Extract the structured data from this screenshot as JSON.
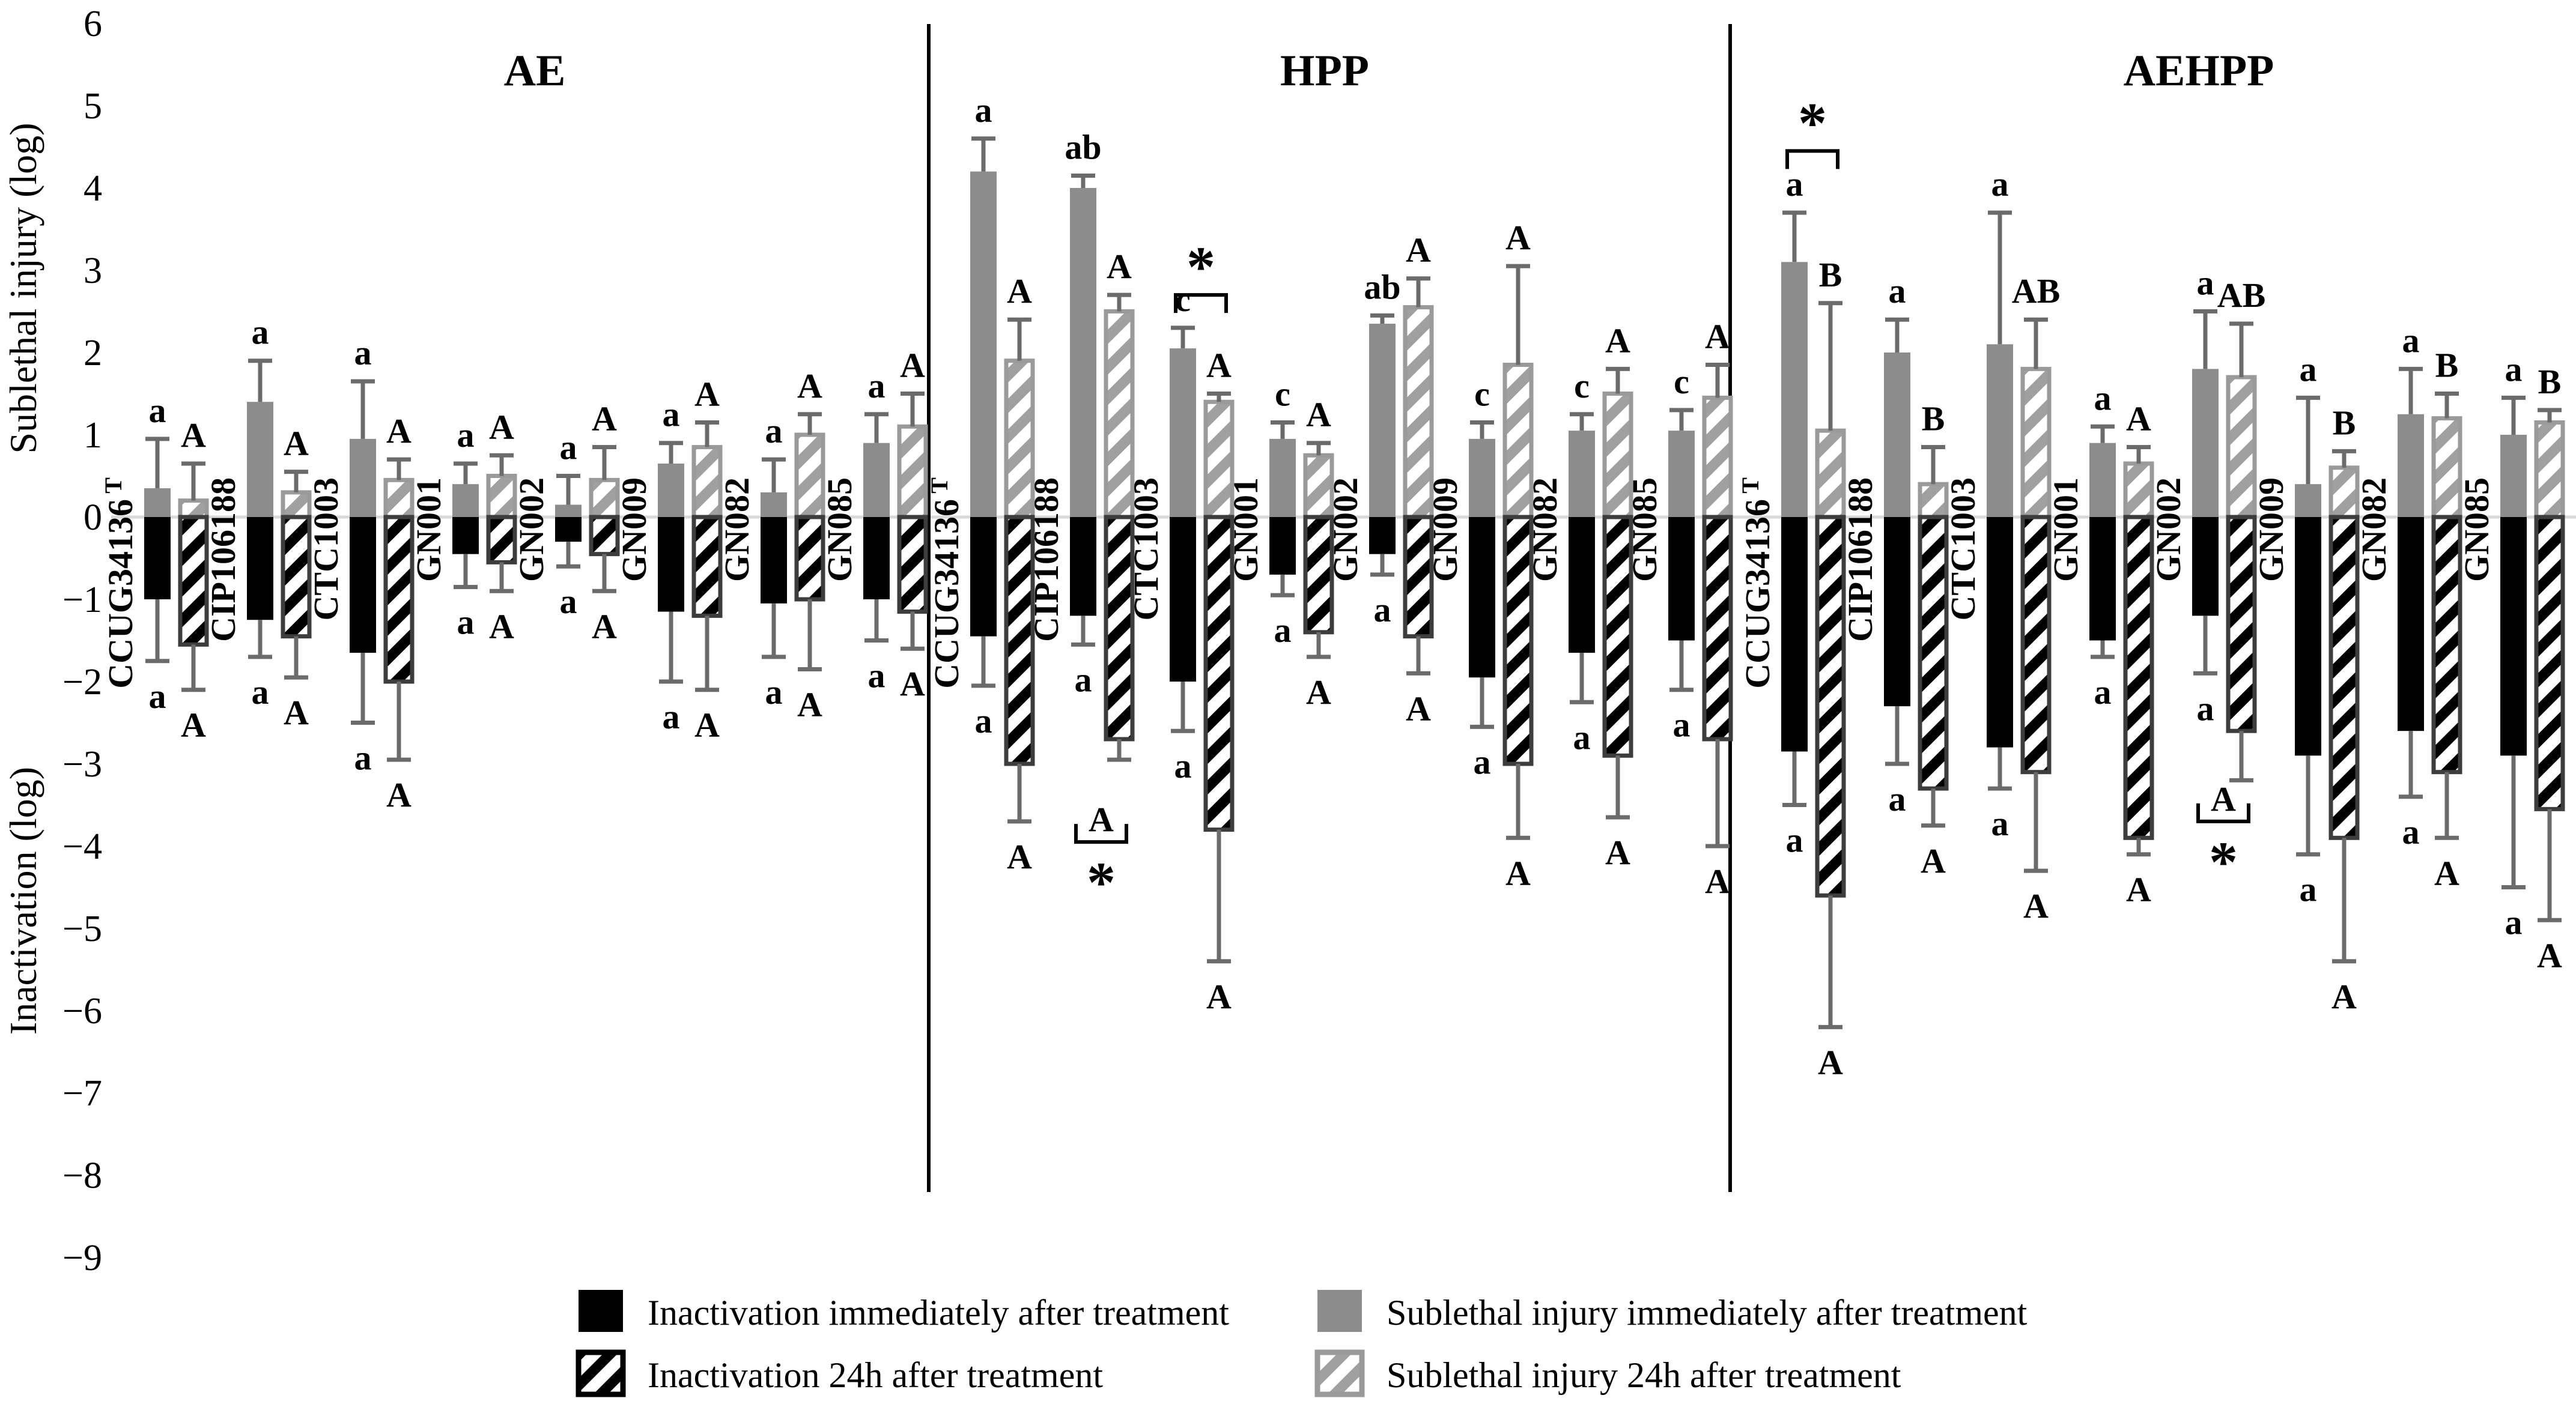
{
  "figure": {
    "background": "#ffffff",
    "accent_gray": "#8c8c8c",
    "hatch_black_border": "#3d3d3d",
    "hatch_gray_stripe": "#a0a0a0",
    "error_bar_color": "#6b6b6b",
    "zero_line_color": "#d9d9d9"
  },
  "chart_data": {
    "type": "bar",
    "title": "",
    "ylabel_top": "Sublethal injury (log)",
    "ylabel_bottom": "Inactivation (log)",
    "ylim": [
      -9,
      6
    ],
    "yticks": [
      6,
      5,
      4,
      3,
      2,
      1,
      0,
      -1,
      -2,
      -3,
      -4,
      -5,
      -6,
      -7,
      -8,
      -9
    ],
    "grid": "off",
    "legend_position": "bottom",
    "series_legend": [
      {
        "key": "inact0",
        "style": "black-solid",
        "label": "Inactivation immediately after treatment"
      },
      {
        "key": "subl0",
        "style": "gray-solid",
        "label": "Sublethal injury immediately after treatment"
      },
      {
        "key": "inact24",
        "style": "black-hatched",
        "label": "Inactivation 24h after treatment"
      },
      {
        "key": "subl24",
        "style": "gray-hatched",
        "label": "Sublethal injury 24h after treatment"
      }
    ],
    "panels": [
      {
        "name": "AE",
        "strains": [
          {
            "name": "CCUG34136",
            "sup": "T",
            "subl0": {
              "v": 0.35,
              "e": 0.95,
              "letter": "a"
            },
            "subl24": {
              "v": 0.2,
              "e": 0.65,
              "letter": "A"
            },
            "inact0": {
              "v": -1.0,
              "e": -1.75,
              "letter": "a"
            },
            "inact24": {
              "v": -1.55,
              "e": -2.1,
              "letter": "A"
            }
          },
          {
            "name": "CIP106188",
            "sup": "",
            "subl0": {
              "v": 1.4,
              "e": 1.9,
              "letter": "a"
            },
            "subl24": {
              "v": 0.3,
              "e": 0.55,
              "letter": "A"
            },
            "inact0": {
              "v": -1.25,
              "e": -1.7,
              "letter": "a"
            },
            "inact24": {
              "v": -1.45,
              "e": -1.95,
              "letter": "A"
            }
          },
          {
            "name": "CTC1003",
            "sup": "",
            "subl0": {
              "v": 0.95,
              "e": 1.65,
              "letter": "a"
            },
            "subl24": {
              "v": 0.45,
              "e": 0.7,
              "letter": "A"
            },
            "inact0": {
              "v": -1.65,
              "e": -2.5,
              "letter": "a"
            },
            "inact24": {
              "v": -2.0,
              "e": -2.95,
              "letter": "A"
            }
          },
          {
            "name": "GN001",
            "sup": "",
            "subl0": {
              "v": 0.4,
              "e": 0.65,
              "letter": "a"
            },
            "subl24": {
              "v": 0.5,
              "e": 0.75,
              "letter": "A"
            },
            "inact0": {
              "v": -0.45,
              "e": -0.85,
              "letter": "a"
            },
            "inact24": {
              "v": -0.55,
              "e": -0.9,
              "letter": "A"
            }
          },
          {
            "name": "GN002",
            "sup": "",
            "subl0": {
              "v": 0.15,
              "e": 0.5,
              "letter": "a"
            },
            "subl24": {
              "v": 0.45,
              "e": 0.85,
              "letter": "A"
            },
            "inact0": {
              "v": -0.3,
              "e": -0.6,
              "letter": "a"
            },
            "inact24": {
              "v": -0.45,
              "e": -0.9,
              "letter": "A"
            }
          },
          {
            "name": "GN009",
            "sup": "",
            "subl0": {
              "v": 0.65,
              "e": 0.9,
              "letter": "a"
            },
            "subl24": {
              "v": 0.85,
              "e": 1.15,
              "letter": "A"
            },
            "inact0": {
              "v": -1.15,
              "e": -2.0,
              "letter": "a"
            },
            "inact24": {
              "v": -1.2,
              "e": -2.1,
              "letter": "A"
            }
          },
          {
            "name": "GN082",
            "sup": "",
            "subl0": {
              "v": 0.3,
              "e": 0.7,
              "letter": "a"
            },
            "subl24": {
              "v": 1.0,
              "e": 1.25,
              "letter": "A"
            },
            "inact0": {
              "v": -1.05,
              "e": -1.7,
              "letter": "a"
            },
            "inact24": {
              "v": -1.0,
              "e": -1.85,
              "letter": "A"
            }
          },
          {
            "name": "GN085",
            "sup": "",
            "subl0": {
              "v": 0.9,
              "e": 1.25,
              "letter": "a"
            },
            "subl24": {
              "v": 1.1,
              "e": 1.5,
              "letter": "A"
            },
            "inact0": {
              "v": -1.0,
              "e": -1.5,
              "letter": "a"
            },
            "inact24": {
              "v": -1.15,
              "e": -1.6,
              "letter": "A"
            }
          }
        ]
      },
      {
        "name": "HPP",
        "strains": [
          {
            "name": "CCUG34136",
            "sup": "T",
            "subl0": {
              "v": 4.2,
              "e": 4.6,
              "letter": "a"
            },
            "subl24": {
              "v": 1.9,
              "e": 2.4,
              "letter": "A"
            },
            "inact0": {
              "v": -1.45,
              "e": -2.05,
              "letter": "a"
            },
            "inact24": {
              "v": -3.0,
              "e": -3.7,
              "letter": "A"
            }
          },
          {
            "name": "CIP106188",
            "sup": "",
            "subl0": {
              "v": 4.0,
              "e": 4.15,
              "letter": "ab"
            },
            "subl24": {
              "v": 2.5,
              "e": 2.7,
              "letter": "A"
            },
            "inact0": {
              "v": -1.2,
              "e": -1.55,
              "letter": "a"
            },
            "inact24": {
              "v": -2.7,
              "e": -2.95,
              "letter": ""
            }
          },
          {
            "name": "CTC1003",
            "sup": "",
            "subl0": {
              "v": 2.05,
              "e": 2.3,
              "letter": "c"
            },
            "subl24": {
              "v": 1.4,
              "e": 1.5,
              "letter": "A"
            },
            "inact0": {
              "v": -2.0,
              "e": -2.6,
              "letter": "a"
            },
            "inact24": {
              "v": -3.8,
              "e": -5.4,
              "letter": "A"
            }
          },
          {
            "name": "GN001",
            "sup": "",
            "subl0": {
              "v": 0.95,
              "e": 1.15,
              "letter": "c"
            },
            "subl24": {
              "v": 0.75,
              "e": 0.9,
              "letter": "A"
            },
            "inact0": {
              "v": -0.7,
              "e": -0.95,
              "letter": "a"
            },
            "inact24": {
              "v": -1.4,
              "e": -1.7,
              "letter": "A"
            }
          },
          {
            "name": "GN002",
            "sup": "",
            "subl0": {
              "v": 2.35,
              "e": 2.45,
              "letter": "ab"
            },
            "subl24": {
              "v": 2.55,
              "e": 2.9,
              "letter": "A"
            },
            "inact0": {
              "v": -0.45,
              "e": -0.7,
              "letter": "a"
            },
            "inact24": {
              "v": -1.45,
              "e": -1.9,
              "letter": "A"
            }
          },
          {
            "name": "GN009",
            "sup": "",
            "subl0": {
              "v": 0.95,
              "e": 1.15,
              "letter": "c"
            },
            "subl24": {
              "v": 1.85,
              "e": 3.05,
              "letter": "A"
            },
            "inact0": {
              "v": -1.95,
              "e": -2.55,
              "letter": "a"
            },
            "inact24": {
              "v": -3.0,
              "e": -3.9,
              "letter": "A"
            }
          },
          {
            "name": "GN082",
            "sup": "",
            "subl0": {
              "v": 1.05,
              "e": 1.25,
              "letter": "c"
            },
            "subl24": {
              "v": 1.5,
              "e": 1.8,
              "letter": "A"
            },
            "inact0": {
              "v": -1.65,
              "e": -2.25,
              "letter": "a"
            },
            "inact24": {
              "v": -2.9,
              "e": -3.65,
              "letter": "A"
            }
          },
          {
            "name": "GN085",
            "sup": "",
            "subl0": {
              "v": 1.05,
              "e": 1.3,
              "letter": "c"
            },
            "subl24": {
              "v": 1.45,
              "e": 1.85,
              "letter": "A"
            },
            "inact0": {
              "v": -1.5,
              "e": -2.1,
              "letter": "a"
            },
            "inact24": {
              "v": -2.7,
              "e": -4.0,
              "letter": "A"
            }
          }
        ]
      },
      {
        "name": "AEHPP",
        "strains": [
          {
            "name": "CCUG34136",
            "sup": "T",
            "subl0": {
              "v": 3.1,
              "e": 3.7,
              "letter": "a"
            },
            "subl24": {
              "v": 1.05,
              "e": 2.6,
              "letter": "B"
            },
            "inact0": {
              "v": -2.85,
              "e": -3.5,
              "letter": "a"
            },
            "inact24": {
              "v": -4.6,
              "e": -6.2,
              "letter": "A"
            }
          },
          {
            "name": "CIP106188",
            "sup": "",
            "subl0": {
              "v": 2.0,
              "e": 2.4,
              "letter": "a"
            },
            "subl24": {
              "v": 0.4,
              "e": 0.85,
              "letter": "B"
            },
            "inact0": {
              "v": -2.3,
              "e": -3.0,
              "letter": "a"
            },
            "inact24": {
              "v": -3.3,
              "e": -3.75,
              "letter": "A"
            }
          },
          {
            "name": "CTC1003",
            "sup": "",
            "subl0": {
              "v": 2.1,
              "e": 3.7,
              "letter": "a"
            },
            "subl24": {
              "v": 1.8,
              "e": 2.4,
              "letter": "AB"
            },
            "inact0": {
              "v": -2.8,
              "e": -3.3,
              "letter": "a"
            },
            "inact24": {
              "v": -3.1,
              "e": -4.3,
              "letter": "A"
            }
          },
          {
            "name": "GN001",
            "sup": "",
            "subl0": {
              "v": 0.9,
              "e": 1.1,
              "letter": "a"
            },
            "subl24": {
              "v": 0.65,
              "e": 0.85,
              "letter": "A"
            },
            "inact0": {
              "v": -1.5,
              "e": -1.7,
              "letter": "a"
            },
            "inact24": {
              "v": -3.9,
              "e": -4.1,
              "letter": "A"
            }
          },
          {
            "name": "GN002",
            "sup": "",
            "subl0": {
              "v": 1.8,
              "e": 2.5,
              "letter": "a"
            },
            "subl24": {
              "v": 1.7,
              "e": 2.35,
              "letter": "AB"
            },
            "inact0": {
              "v": -1.2,
              "e": -1.9,
              "letter": "a"
            },
            "inact24": {
              "v": -2.6,
              "e": -3.2,
              "letter": ""
            }
          },
          {
            "name": "GN009",
            "sup": "",
            "subl0": {
              "v": 0.4,
              "e": 1.45,
              "letter": "a"
            },
            "subl24": {
              "v": 0.6,
              "e": 0.8,
              "letter": "B"
            },
            "inact0": {
              "v": -2.9,
              "e": -4.1,
              "letter": "a"
            },
            "inact24": {
              "v": -3.9,
              "e": -5.4,
              "letter": "A"
            }
          },
          {
            "name": "GN082",
            "sup": "",
            "subl0": {
              "v": 1.25,
              "e": 1.8,
              "letter": "a"
            },
            "subl24": {
              "v": 1.2,
              "e": 1.5,
              "letter": "B"
            },
            "inact0": {
              "v": -2.6,
              "e": -3.4,
              "letter": "a"
            },
            "inact24": {
              "v": -3.1,
              "e": -3.9,
              "letter": "A"
            }
          },
          {
            "name": "GN085",
            "sup": "",
            "subl0": {
              "v": 1.0,
              "e": 1.45,
              "letter": "a"
            },
            "subl24": {
              "v": 1.15,
              "e": 1.3,
              "letter": "B"
            },
            "inact0": {
              "v": -2.9,
              "e": -4.5,
              "letter": "a"
            },
            "inact24": {
              "v": -3.55,
              "e": -4.9,
              "letter": "A"
            }
          }
        ]
      }
    ],
    "annotations": [
      {
        "panel": 1,
        "strain": 2,
        "kind": "top",
        "value": 2.7,
        "star": "*",
        "letter": ""
      },
      {
        "panel": 1,
        "strain": 1,
        "kind": "bottom",
        "value": -3.95,
        "star": "*",
        "letter": "A"
      },
      {
        "panel": 2,
        "strain": 0,
        "kind": "top",
        "value": 4.45,
        "star": "*",
        "letter": ""
      },
      {
        "panel": 2,
        "strain": 4,
        "kind": "bottom",
        "value": -3.7,
        "star": "*",
        "letter": "A"
      }
    ]
  }
}
